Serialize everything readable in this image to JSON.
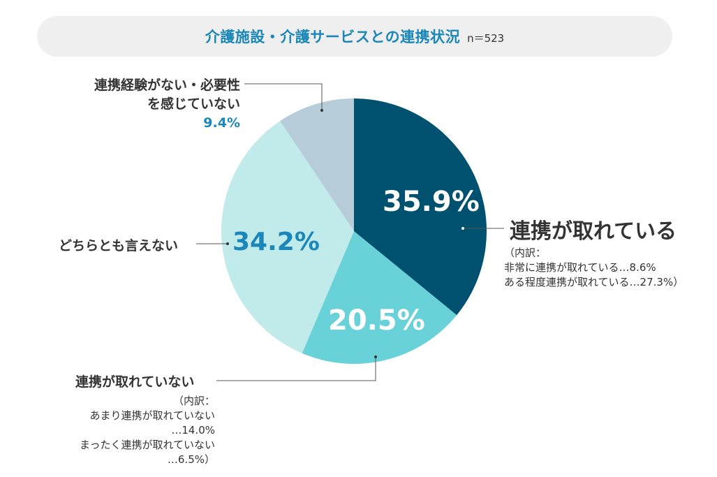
{
  "title": "介護施設・介護サービスとの連携状況",
  "n_label": "n＝523",
  "chart_data": {
    "type": "pie",
    "title": "介護施設・介護サービスとの連携状況",
    "slices": [
      {
        "label": "連携が取れている",
        "value": 35.9,
        "value_label": "35.9%",
        "color": "#00516f",
        "breakdown": [
          "（内訳：",
          "非常に連携が取れている…8.6%",
          "ある程度連携が取れている…27.3%）"
        ]
      },
      {
        "label": "連携が取れていない",
        "value": 20.5,
        "value_label": "20.5%",
        "color": "#69d2d8",
        "breakdown": [
          "（内訳：",
          "あまり連携が取れていない",
          "…14.0%",
          "まったく連携が取れていない",
          "…6.5%）"
        ]
      },
      {
        "label": "どちらとも言えない",
        "value": 34.2,
        "value_label": "34.2%",
        "color": "#c1eaea"
      },
      {
        "label_lines": [
          "連携経験がない・必要性",
          "を感じていない"
        ],
        "value": 9.4,
        "value_label": "9.4%",
        "color": "#b6ccd9"
      }
    ]
  },
  "colors": {
    "accent_blue": "#1a87b8",
    "dark_text": "#333333",
    "title_bg": "#efefef",
    "white": "#ffffff"
  }
}
